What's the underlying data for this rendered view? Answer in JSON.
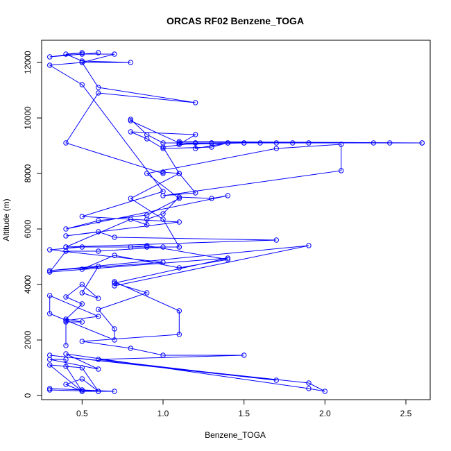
{
  "chart_data": {
    "type": "line",
    "title": "ORCAS RF02 Benzene_TOGA",
    "xlabel": "Benzene_TOGA",
    "ylabel": "Altitude (m)",
    "xlim": [
      0.25,
      2.65
    ],
    "ylim": [
      -150,
      12800
    ],
    "x_ticks": [
      0.5,
      1.0,
      1.5,
      2.0,
      2.5
    ],
    "x_tick_labels": [
      "0.5",
      "1.0",
      "1.5",
      "2.0",
      "2.5"
    ],
    "y_ticks": [
      0,
      2000,
      4000,
      6000,
      8000,
      10000,
      12000
    ],
    "y_tick_labels": [
      "0",
      "2000",
      "4000",
      "6000",
      "8000",
      "10000",
      "12000"
    ],
    "grid": false,
    "color": "#0000ff",
    "series": [
      {
        "points": [
          [
            0.3,
            200
          ],
          [
            0.6,
            150
          ],
          [
            0.5,
            200
          ],
          [
            0.3,
            250
          ],
          [
            0.7,
            150
          ],
          [
            0.5,
            150
          ],
          [
            0.4,
            400
          ],
          [
            0.5,
            600
          ],
          [
            0.6,
            150
          ],
          [
            0.5,
            1000
          ],
          [
            0.3,
            1100
          ],
          [
            0.5,
            150
          ],
          [
            0.4,
            1050
          ],
          [
            0.4,
            1300
          ],
          [
            0.3,
            1300
          ],
          [
            0.6,
            950
          ],
          [
            0.4,
            1500
          ],
          [
            1.9,
            250
          ],
          [
            2.0,
            150
          ],
          [
            1.9,
            450
          ],
          [
            0.3,
            1450
          ],
          [
            1.7,
            550
          ],
          [
            0.6,
            1300
          ],
          [
            1.5,
            1450
          ],
          [
            1.0,
            1450
          ],
          [
            0.8,
            1700
          ],
          [
            0.5,
            1950
          ],
          [
            1.1,
            2200
          ],
          [
            1.1,
            3050
          ],
          [
            0.7,
            4100
          ],
          [
            0.7,
            3950
          ],
          [
            1.9,
            5400
          ],
          [
            0.3,
            4500
          ],
          [
            1.0,
            4800
          ],
          [
            0.3,
            5250
          ],
          [
            0.5,
            5350
          ],
          [
            0.9,
            5350
          ],
          [
            1.1,
            5350
          ],
          [
            0.4,
            5350
          ],
          [
            1.7,
            5600
          ],
          [
            0.7,
            5700
          ],
          [
            0.6,
            5900
          ],
          [
            0.4,
            5750
          ],
          [
            1.1,
            6250
          ],
          [
            0.5,
            6450
          ],
          [
            1.0,
            7350
          ],
          [
            0.5,
            11200
          ],
          [
            0.3,
            11900
          ],
          [
            0.5,
            12000
          ],
          [
            0.8,
            12000
          ],
          [
            0.5,
            12050
          ],
          [
            0.4,
            12300
          ],
          [
            0.5,
            12350
          ],
          [
            0.3,
            12200
          ],
          [
            0.6,
            12350
          ],
          [
            0.5,
            12300
          ],
          [
            0.7,
            12300
          ],
          [
            0.5,
            12000
          ],
          [
            0.6,
            11100
          ],
          [
            1.2,
            10550
          ],
          [
            0.6,
            10900
          ],
          [
            0.4,
            9100
          ],
          [
            1.0,
            8000
          ],
          [
            1.0,
            8050
          ],
          [
            1.1,
            8000
          ],
          [
            0.8,
            7100
          ],
          [
            1.0,
            6350
          ],
          [
            1.1,
            5350
          ],
          [
            1.0,
            5350
          ],
          [
            0.6,
            5200
          ],
          [
            0.4,
            5200
          ],
          [
            0.3,
            4450
          ],
          [
            1.4,
            4950
          ],
          [
            0.7,
            4050
          ],
          [
            0.9,
            3700
          ],
          [
            0.6,
            3100
          ],
          [
            0.7,
            2400
          ],
          [
            0.7,
            2000
          ],
          [
            0.3,
            2950
          ],
          [
            0.3,
            3600
          ],
          [
            0.6,
            2850
          ],
          [
            0.4,
            2700
          ],
          [
            0.4,
            1800
          ],
          [
            0.4,
            2650
          ],
          [
            0.5,
            2650
          ],
          [
            0.4,
            2750
          ],
          [
            0.5,
            3300
          ],
          [
            0.4,
            3550
          ],
          [
            0.5,
            4000
          ],
          [
            0.6,
            3500
          ],
          [
            0.5,
            3700
          ],
          [
            0.6,
            4650
          ],
          [
            0.5,
            4550
          ],
          [
            0.7,
            5050
          ],
          [
            1.1,
            4600
          ],
          [
            1.4,
            4900
          ],
          [
            0.9,
            5400
          ],
          [
            0.8,
            5350
          ],
          [
            0.4,
            5350
          ],
          [
            0.8,
            6350
          ],
          [
            0.9,
            6150
          ],
          [
            0.9,
            6350
          ],
          [
            1.0,
            6550
          ],
          [
            1.1,
            7150
          ],
          [
            1.3,
            7100
          ],
          [
            1.4,
            7200
          ],
          [
            0.4,
            6000
          ],
          [
            0.6,
            6300
          ],
          [
            0.9,
            6500
          ],
          [
            1.1,
            7100
          ],
          [
            0.9,
            8000
          ],
          [
            1.7,
            8900
          ],
          [
            2.1,
            9050
          ],
          [
            2.1,
            8100
          ],
          [
            1.0,
            7200
          ],
          [
            1.2,
            7300
          ],
          [
            1.1,
            8000
          ],
          [
            1.0,
            8950
          ],
          [
            1.2,
            9100
          ],
          [
            1.2,
            8900
          ],
          [
            1.4,
            9100
          ],
          [
            1.3,
            9100
          ],
          [
            1.5,
            9100
          ],
          [
            1.1,
            9100
          ],
          [
            0.8,
            9900
          ],
          [
            0.8,
            9950
          ],
          [
            0.9,
            9400
          ],
          [
            1.0,
            9100
          ],
          [
            1.2,
            9100
          ],
          [
            1.1,
            9050
          ],
          [
            1.5,
            9100
          ],
          [
            1.6,
            9100
          ],
          [
            2.3,
            9100
          ],
          [
            2.6,
            9100
          ],
          [
            2.4,
            9100
          ],
          [
            1.9,
            9100
          ],
          [
            1.8,
            9100
          ],
          [
            1.1,
            9150
          ],
          [
            2.6,
            9100
          ],
          [
            1.4,
            9100
          ],
          [
            1.3,
            8950
          ],
          [
            1.0,
            8900
          ],
          [
            0.9,
            9250
          ],
          [
            0.8,
            9500
          ],
          [
            1.2,
            9400
          ],
          [
            1.1,
            9050
          ],
          [
            1.3,
            9100
          ],
          [
            1.7,
            9100
          ],
          [
            1.2,
            9100
          ],
          [
            1.1,
            9100
          ]
        ]
      }
    ]
  }
}
